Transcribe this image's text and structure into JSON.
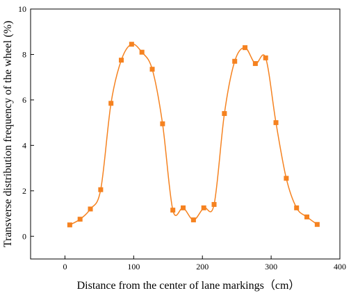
{
  "chart_data": {
    "type": "line",
    "title": "",
    "xlabel": "Distance from the center of lane markings（cm）",
    "ylabel": "Transverse distribution frequency of the wheel (%)",
    "xlim": [
      -50,
      400
    ],
    "ylim": [
      -1,
      10
    ],
    "xticks": [
      0,
      100,
      200,
      300,
      400
    ],
    "yticks": [
      0,
      2,
      4,
      6,
      8,
      10
    ],
    "grid": false,
    "legend": "none",
    "color": "#f58220",
    "series": [
      {
        "x": [
          7,
          22,
          37,
          52,
          67,
          82,
          97,
          112,
          127,
          142,
          157,
          172,
          187,
          202,
          217,
          232,
          247,
          262,
          277,
          292,
          307,
          322,
          337,
          352,
          367
        ],
        "y": [
          0.5,
          0.75,
          1.2,
          2.05,
          5.85,
          7.75,
          8.45,
          8.1,
          7.35,
          4.95,
          1.15,
          1.25,
          0.72,
          1.25,
          1.4,
          5.4,
          7.7,
          8.3,
          7.6,
          7.85,
          5.0,
          2.55,
          1.25,
          0.85,
          0.52
        ]
      }
    ]
  }
}
